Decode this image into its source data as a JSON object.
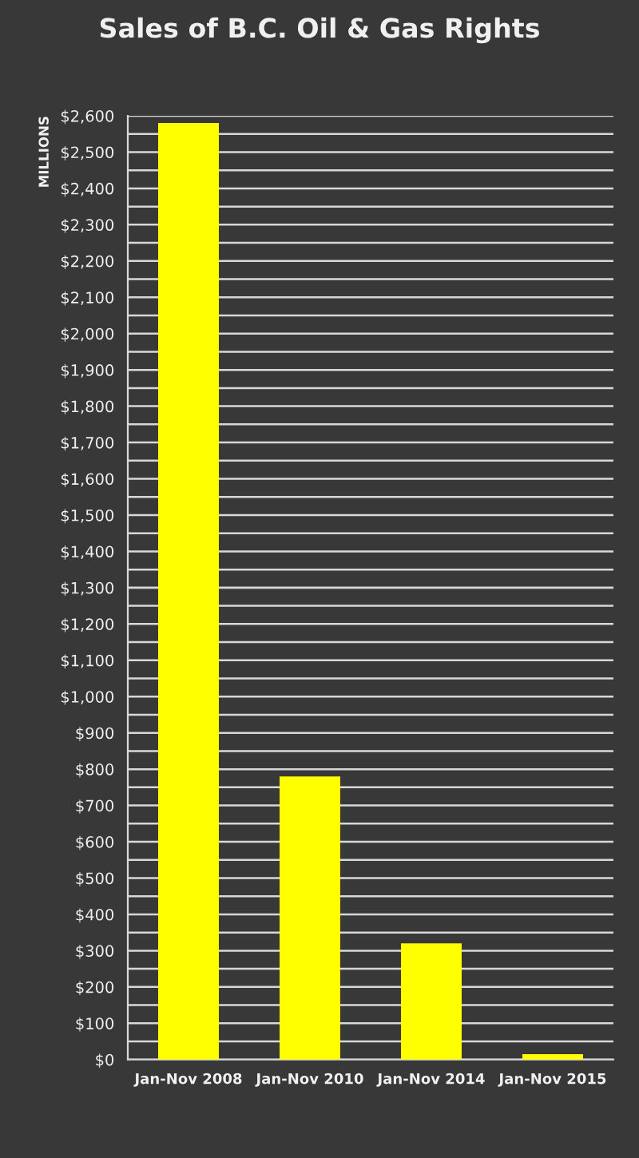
{
  "chart_data": {
    "type": "bar",
    "title": "Sales of B.C. Oil & Gas Rights",
    "ylabel": "MILLIONS",
    "categories": [
      "Jan-Nov 2008",
      "Jan-Nov 2010",
      "Jan-Nov 2014",
      "Jan-Nov 2015"
    ],
    "values": [
      2580,
      780,
      320,
      15
    ],
    "color": "#ffff00",
    "ylim": [
      0,
      2600
    ],
    "yticks": [
      {
        "value": 0,
        "label": "$0"
      },
      {
        "value": 50,
        "label": null
      },
      {
        "value": 100,
        "label": "$100"
      },
      {
        "value": 150,
        "label": null
      },
      {
        "value": 200,
        "label": "$200"
      },
      {
        "value": 250,
        "label": null
      },
      {
        "value": 300,
        "label": "$300"
      },
      {
        "value": 350,
        "label": null
      },
      {
        "value": 400,
        "label": "$400"
      },
      {
        "value": 450,
        "label": null
      },
      {
        "value": 500,
        "label": "$500"
      },
      {
        "value": 550,
        "label": null
      },
      {
        "value": 600,
        "label": "$600"
      },
      {
        "value": 650,
        "label": null
      },
      {
        "value": 700,
        "label": "$700"
      },
      {
        "value": 750,
        "label": null
      },
      {
        "value": 800,
        "label": "$800"
      },
      {
        "value": 850,
        "label": null
      },
      {
        "value": 900,
        "label": "$900"
      },
      {
        "value": 950,
        "label": null
      },
      {
        "value": 1000,
        "label": "$1,000"
      },
      {
        "value": 1050,
        "label": null
      },
      {
        "value": 1100,
        "label": "$1,100"
      },
      {
        "value": 1150,
        "label": null
      },
      {
        "value": 1200,
        "label": "$1,200"
      },
      {
        "value": 1250,
        "label": null
      },
      {
        "value": 1300,
        "label": "$1,300"
      },
      {
        "value": 1350,
        "label": null
      },
      {
        "value": 1400,
        "label": "$1,400"
      },
      {
        "value": 1450,
        "label": null
      },
      {
        "value": 1500,
        "label": "$1,500"
      },
      {
        "value": 1550,
        "label": null
      },
      {
        "value": 1600,
        "label": "$1,600"
      },
      {
        "value": 1650,
        "label": null
      },
      {
        "value": 1700,
        "label": "$1,700"
      },
      {
        "value": 1750,
        "label": null
      },
      {
        "value": 1800,
        "label": "$1,800"
      },
      {
        "value": 1850,
        "label": null
      },
      {
        "value": 1900,
        "label": "$1,900"
      },
      {
        "value": 1950,
        "label": null
      },
      {
        "value": 2000,
        "label": "$2,000"
      },
      {
        "value": 2050,
        "label": null
      },
      {
        "value": 2100,
        "label": "$2,100"
      },
      {
        "value": 2150,
        "label": null
      },
      {
        "value": 2200,
        "label": "$2,200"
      },
      {
        "value": 2250,
        "label": null
      },
      {
        "value": 2300,
        "label": "$2,300"
      },
      {
        "value": 2350,
        "label": null
      },
      {
        "value": 2400,
        "label": "$2,400"
      },
      {
        "value": 2450,
        "label": null
      },
      {
        "value": 2500,
        "label": "$2,500"
      },
      {
        "value": 2550,
        "label": null
      },
      {
        "value": 2600,
        "label": "$2,600"
      }
    ],
    "grid": "y"
  }
}
